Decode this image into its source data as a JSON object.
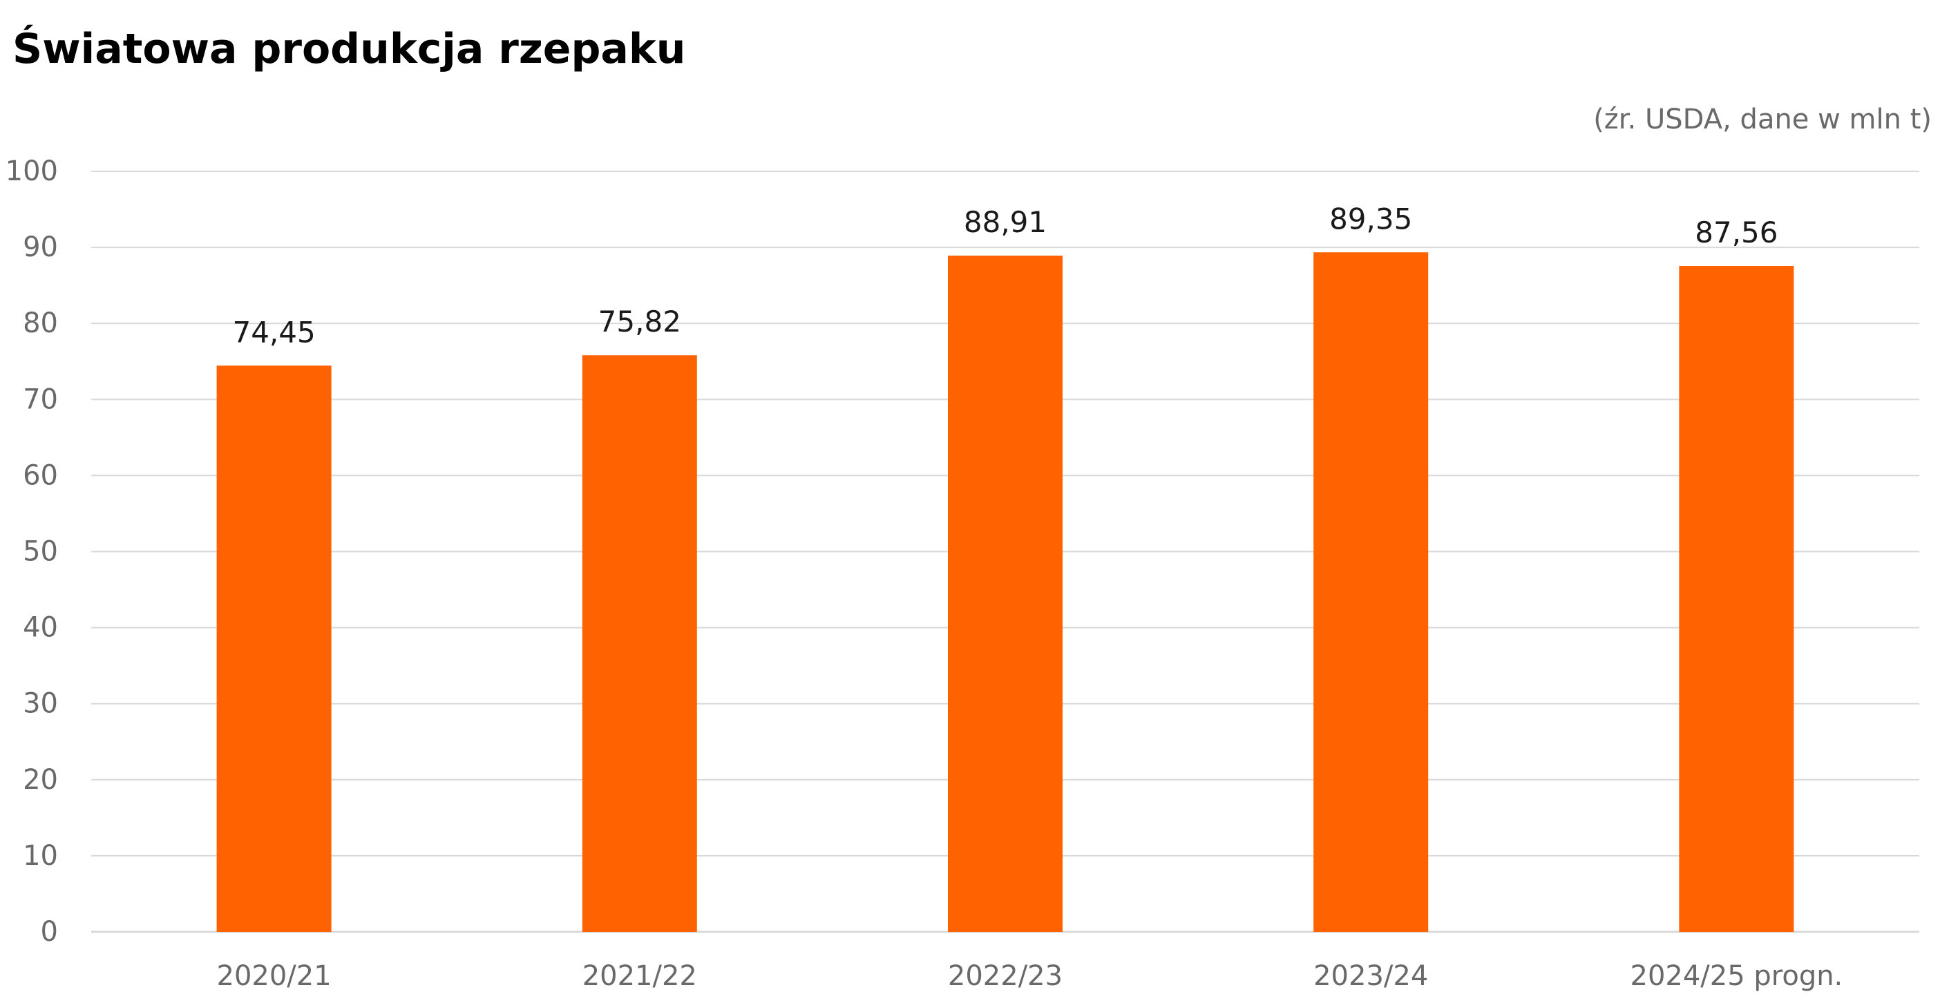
{
  "chart_data": {
    "type": "bar",
    "title": "Światowa produkcja rzepaku",
    "subtitle": "(źr. USDA, dane w mln t)",
    "categories": [
      "2020/21",
      "2021/22",
      "2022/23",
      "2023/24",
      "2024/25 progn."
    ],
    "values": [
      74.45,
      75.82,
      88.91,
      89.35,
      87.56
    ],
    "data_labels": [
      "74,45",
      "75,82",
      "88,91",
      "89,35",
      "87,56"
    ],
    "ylim": [
      0,
      100
    ],
    "yticks": [
      0,
      10,
      20,
      30,
      40,
      50,
      60,
      70,
      80,
      90,
      100
    ],
    "xlabel": "",
    "ylabel": "",
    "grid": true,
    "legend": false,
    "bar_color": "#ff6200",
    "grid_color": "#d9d9d9",
    "axis_text_color": "#696969"
  }
}
